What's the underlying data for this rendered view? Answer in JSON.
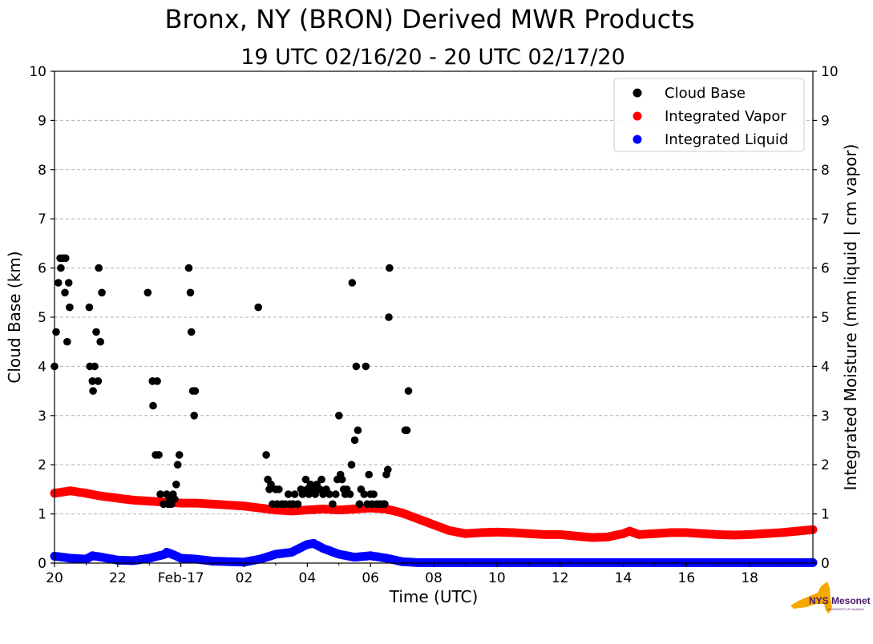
{
  "chart_data": {
    "type": "scatter",
    "title": "Bronx, NY (BRON) Derived MWR Products",
    "subtitle": "19 UTC 02/16/20 - 20 UTC 02/17/20",
    "xlabel": "Time (UTC)",
    "ylabel": "Cloud Base (km)",
    "y2label": "Integrated Moisture (mm liquid | cm vapor)",
    "x_unit": "hours since 20 UTC 02/16/20",
    "xlim": [
      0,
      24
    ],
    "ylim": [
      0,
      10
    ],
    "y2lim": [
      0,
      10
    ],
    "grid": "horizontal dashed",
    "legend_position": "top-right",
    "x_ticks": [
      {
        "x": 0,
        "label": "20"
      },
      {
        "x": 2,
        "label": "22"
      },
      {
        "x": 4,
        "label": "Feb-17"
      },
      {
        "x": 6,
        "label": "02"
      },
      {
        "x": 8,
        "label": "04"
      },
      {
        "x": 10,
        "label": "06"
      },
      {
        "x": 12,
        "label": "08"
      },
      {
        "x": 14,
        "label": "10"
      },
      {
        "x": 16,
        "label": "12"
      },
      {
        "x": 18,
        "label": "14"
      },
      {
        "x": 20,
        "label": "16"
      },
      {
        "x": 22,
        "label": "18"
      }
    ],
    "y_ticks": [
      "0",
      "1",
      "2",
      "3",
      "4",
      "5",
      "6",
      "7",
      "8",
      "9",
      "10"
    ],
    "series": [
      {
        "name": "Cloud Base",
        "color": "#000000",
        "points": [
          [
            0.0,
            4.0
          ],
          [
            0.05,
            4.7
          ],
          [
            0.12,
            5.7
          ],
          [
            0.18,
            6.2
          ],
          [
            0.2,
            6.0
          ],
          [
            0.27,
            6.2
          ],
          [
            0.35,
            6.2
          ],
          [
            0.33,
            5.5
          ],
          [
            0.4,
            4.5
          ],
          [
            0.45,
            5.7
          ],
          [
            0.48,
            5.2
          ],
          [
            1.1,
            5.2
          ],
          [
            1.12,
            4.0
          ],
          [
            1.2,
            3.7
          ],
          [
            1.22,
            3.5
          ],
          [
            1.27,
            4.0
          ],
          [
            1.32,
            4.7
          ],
          [
            1.38,
            3.7
          ],
          [
            1.4,
            6.0
          ],
          [
            1.45,
            4.5
          ],
          [
            1.5,
            5.5
          ],
          [
            2.95,
            5.5
          ],
          [
            3.1,
            3.7
          ],
          [
            3.12,
            3.2
          ],
          [
            3.2,
            2.2
          ],
          [
            3.25,
            3.7
          ],
          [
            3.3,
            2.2
          ],
          [
            3.35,
            1.4
          ],
          [
            3.45,
            1.2
          ],
          [
            3.55,
            1.4
          ],
          [
            3.6,
            1.2
          ],
          [
            3.65,
            1.3
          ],
          [
            3.7,
            1.2
          ],
          [
            3.75,
            1.4
          ],
          [
            3.8,
            1.3
          ],
          [
            3.85,
            1.6
          ],
          [
            3.9,
            2.0
          ],
          [
            3.95,
            2.2
          ],
          [
            4.25,
            6.0
          ],
          [
            4.3,
            5.5
          ],
          [
            4.33,
            4.7
          ],
          [
            4.38,
            3.5
          ],
          [
            4.42,
            3.0
          ],
          [
            4.45,
            3.5
          ],
          [
            6.45,
            5.2
          ],
          [
            6.7,
            2.2
          ],
          [
            6.75,
            1.7
          ],
          [
            6.8,
            1.5
          ],
          [
            6.85,
            1.6
          ],
          [
            6.9,
            1.2
          ],
          [
            7.0,
            1.5
          ],
          [
            7.05,
            1.2
          ],
          [
            7.1,
            1.5
          ],
          [
            7.2,
            1.2
          ],
          [
            7.3,
            1.2
          ],
          [
            7.4,
            1.4
          ],
          [
            7.45,
            1.2
          ],
          [
            7.55,
            1.2
          ],
          [
            7.6,
            1.4
          ],
          [
            7.7,
            1.2
          ],
          [
            7.8,
            1.5
          ],
          [
            7.85,
            1.4
          ],
          [
            7.95,
            1.7
          ],
          [
            8.0,
            1.5
          ],
          [
            8.05,
            1.4
          ],
          [
            8.1,
            1.6
          ],
          [
            8.15,
            1.5
          ],
          [
            8.2,
            1.5
          ],
          [
            8.25,
            1.4
          ],
          [
            8.3,
            1.6
          ],
          [
            8.4,
            1.5
          ],
          [
            8.45,
            1.7
          ],
          [
            8.5,
            1.4
          ],
          [
            8.6,
            1.5
          ],
          [
            8.7,
            1.4
          ],
          [
            8.8,
            1.2
          ],
          [
            8.9,
            1.4
          ],
          [
            8.95,
            1.7
          ],
          [
            9.0,
            3.0
          ],
          [
            9.05,
            1.8
          ],
          [
            9.1,
            1.7
          ],
          [
            9.15,
            1.5
          ],
          [
            9.2,
            1.4
          ],
          [
            9.25,
            1.5
          ],
          [
            9.35,
            1.4
          ],
          [
            9.4,
            2.0
          ],
          [
            9.42,
            5.7
          ],
          [
            9.5,
            2.5
          ],
          [
            9.55,
            4.0
          ],
          [
            9.6,
            2.7
          ],
          [
            9.65,
            1.2
          ],
          [
            9.7,
            1.5
          ],
          [
            9.8,
            1.4
          ],
          [
            9.85,
            4.0
          ],
          [
            9.9,
            1.2
          ],
          [
            9.95,
            1.8
          ],
          [
            10.0,
            1.4
          ],
          [
            10.05,
            1.2
          ],
          [
            10.1,
            1.4
          ],
          [
            10.2,
            1.2
          ],
          [
            10.3,
            1.2
          ],
          [
            10.4,
            1.2
          ],
          [
            10.45,
            1.2
          ],
          [
            10.5,
            1.8
          ],
          [
            10.55,
            1.9
          ],
          [
            10.58,
            5.0
          ],
          [
            10.6,
            6.0
          ],
          [
            11.1,
            2.7
          ],
          [
            11.15,
            2.7
          ],
          [
            11.2,
            3.5
          ]
        ]
      },
      {
        "name": "Integrated Vapor",
        "color": "#ff0000",
        "points": [
          [
            0,
            1.42
          ],
          [
            0.5,
            1.47
          ],
          [
            1,
            1.42
          ],
          [
            1.5,
            1.36
          ],
          [
            2,
            1.32
          ],
          [
            2.5,
            1.28
          ],
          [
            3,
            1.26
          ],
          [
            3.5,
            1.24
          ],
          [
            4,
            1.22
          ],
          [
            4.5,
            1.22
          ],
          [
            5,
            1.2
          ],
          [
            5.5,
            1.18
          ],
          [
            6,
            1.16
          ],
          [
            6.5,
            1.12
          ],
          [
            7,
            1.08
          ],
          [
            7.5,
            1.06
          ],
          [
            8,
            1.08
          ],
          [
            8.5,
            1.1
          ],
          [
            9,
            1.08
          ],
          [
            9.5,
            1.1
          ],
          [
            10,
            1.12
          ],
          [
            10.5,
            1.1
          ],
          [
            11,
            1.02
          ],
          [
            11.5,
            0.9
          ],
          [
            12,
            0.78
          ],
          [
            12.5,
            0.66
          ],
          [
            13,
            0.6
          ],
          [
            13.5,
            0.62
          ],
          [
            14,
            0.63
          ],
          [
            14.5,
            0.62
          ],
          [
            15,
            0.6
          ],
          [
            15.5,
            0.58
          ],
          [
            16,
            0.58
          ],
          [
            16.5,
            0.55
          ],
          [
            17,
            0.52
          ],
          [
            17.5,
            0.53
          ],
          [
            18,
            0.6
          ],
          [
            18.2,
            0.65
          ],
          [
            18.5,
            0.58
          ],
          [
            19,
            0.6
          ],
          [
            19.5,
            0.62
          ],
          [
            20,
            0.62
          ],
          [
            20.5,
            0.6
          ],
          [
            21,
            0.58
          ],
          [
            21.5,
            0.57
          ],
          [
            22,
            0.58
          ],
          [
            22.5,
            0.6
          ],
          [
            23,
            0.62
          ],
          [
            23.5,
            0.65
          ],
          [
            24,
            0.68
          ]
        ]
      },
      {
        "name": "Integrated Liquid",
        "color": "#0000ff",
        "points": [
          [
            0,
            0.14
          ],
          [
            0.5,
            0.1
          ],
          [
            1,
            0.08
          ],
          [
            1.2,
            0.15
          ],
          [
            1.5,
            0.12
          ],
          [
            2,
            0.06
          ],
          [
            2.5,
            0.05
          ],
          [
            3,
            0.1
          ],
          [
            3.5,
            0.18
          ],
          [
            3.55,
            0.22
          ],
          [
            3.8,
            0.16
          ],
          [
            4,
            0.1
          ],
          [
            4.5,
            0.08
          ],
          [
            5,
            0.04
          ],
          [
            5.5,
            0.03
          ],
          [
            6,
            0.02
          ],
          [
            6.5,
            0.08
          ],
          [
            7,
            0.18
          ],
          [
            7.5,
            0.22
          ],
          [
            8,
            0.38
          ],
          [
            8.2,
            0.4
          ],
          [
            8.5,
            0.3
          ],
          [
            9,
            0.18
          ],
          [
            9.5,
            0.12
          ],
          [
            10,
            0.15
          ],
          [
            10.5,
            0.1
          ],
          [
            11,
            0.03
          ],
          [
            11.5,
            0.01
          ],
          [
            12,
            0.01
          ],
          [
            14,
            0.01
          ],
          [
            16,
            0.01
          ],
          [
            18,
            0.01
          ],
          [
            20,
            0.01
          ],
          [
            22,
            0.01
          ],
          [
            24,
            0.01
          ]
        ]
      }
    ]
  },
  "logo": {
    "label": "NYS Mesonet",
    "fine_print": "UNIVERSITY AT ALBANY",
    "color_gold": "#f5a800",
    "color_purple": "#46166b"
  }
}
